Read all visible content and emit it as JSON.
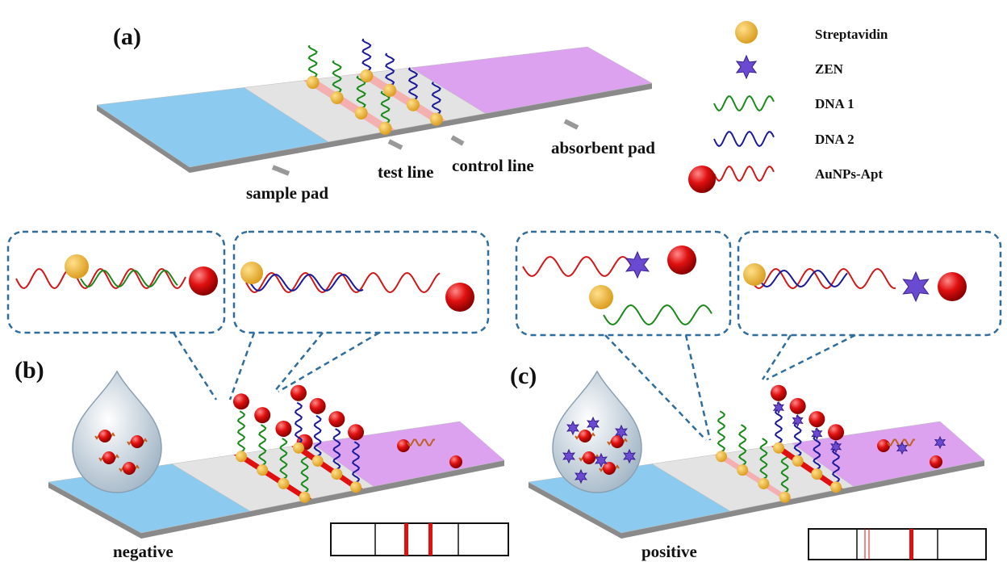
{
  "panels": {
    "a": "(a)",
    "b": "(b)",
    "c": "(c)"
  },
  "strip_labels": {
    "sample_pad": "sample pad",
    "test_line": "test line",
    "control_line": "control line",
    "absorbent_pad": "absorbent pad"
  },
  "legend": [
    {
      "label": "Streptavidin"
    },
    {
      "label": "ZEN"
    },
    {
      "label": "DNA 1"
    },
    {
      "label": "DNA 2"
    },
    {
      "label": "AuNPs-Apt"
    }
  ],
  "results": {
    "negative": "negative",
    "positive": "positive"
  }
}
